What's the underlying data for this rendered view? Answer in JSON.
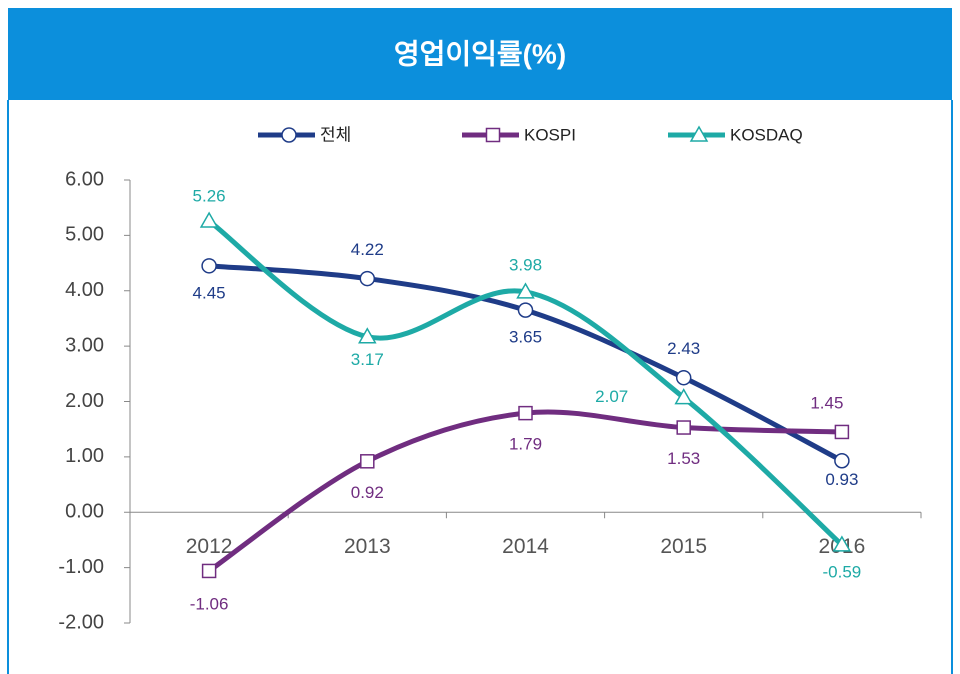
{
  "chart_data": {
    "type": "line",
    "title": "영업이익률(%)",
    "categories": [
      "2012",
      "2013",
      "2014",
      "2015",
      "2016"
    ],
    "series": [
      {
        "name": "전체",
        "color": "#1f3c88",
        "marker": "circle",
        "values": [
          4.45,
          4.22,
          3.65,
          2.43,
          0.93
        ]
      },
      {
        "name": "KOSPI",
        "color": "#702d80",
        "marker": "square",
        "values": [
          -1.06,
          0.92,
          1.79,
          1.53,
          1.45
        ]
      },
      {
        "name": "KOSDAQ",
        "color": "#1eaaa6",
        "marker": "triangle",
        "values": [
          5.26,
          3.17,
          3.98,
          2.07,
          -0.59
        ]
      }
    ],
    "ylim": [
      -2,
      6
    ],
    "yticks": [
      {
        "value": -2,
        "label": "-2.00"
      },
      {
        "value": -1,
        "label": "-1.00"
      },
      {
        "value": 0,
        "label": "0.00"
      },
      {
        "value": 1,
        "label": "1.00"
      },
      {
        "value": 2,
        "label": "2.00"
      },
      {
        "value": 3,
        "label": "3.00"
      },
      {
        "value": 4,
        "label": "4.00"
      },
      {
        "value": 5,
        "label": "5.00"
      },
      {
        "value": 6,
        "label": "6.00"
      }
    ],
    "smooth": true,
    "legend": "top"
  }
}
